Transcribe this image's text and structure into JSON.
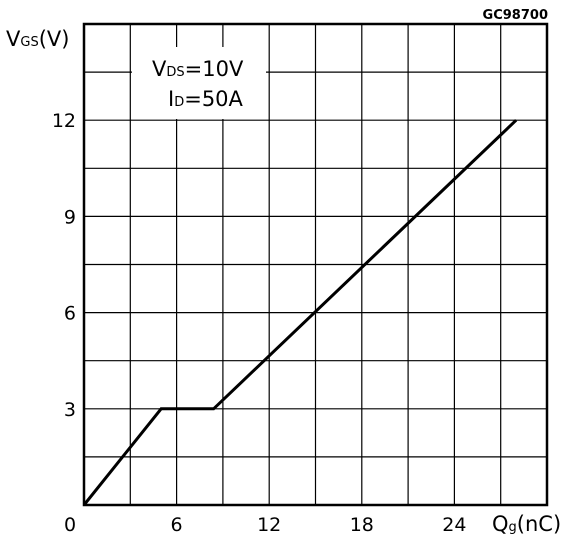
{
  "chart_data": {
    "type": "line",
    "figure_code": "GC98700",
    "y_label": {
      "main": "V",
      "sub": "GS",
      "unit": "(V)"
    },
    "x_label": {
      "main": "Q",
      "sub": "g",
      "unit": "(nC)"
    },
    "conditions": [
      {
        "main": "V",
        "sub": "DS",
        "value": "=10V"
      },
      {
        "main": "I",
        "sub": "D",
        "value": "=50A"
      }
    ],
    "xlim": [
      0,
      30
    ],
    "ylim": [
      0,
      15
    ],
    "x_grid_step": 3,
    "y_grid_step": 1.5,
    "x_ticks": [
      {
        "value": 0,
        "label": "0"
      },
      {
        "value": 6,
        "label": "6"
      },
      {
        "value": 12,
        "label": "12"
      },
      {
        "value": 18,
        "label": "18"
      },
      {
        "value": 24,
        "label": "24"
      }
    ],
    "y_ticks": [
      {
        "value": 3,
        "label": "3"
      },
      {
        "value": 6,
        "label": "6"
      },
      {
        "value": 9,
        "label": "9"
      },
      {
        "value": 12,
        "label": "12"
      }
    ],
    "series": [
      {
        "x": [
          0,
          5,
          8.4,
          28
        ],
        "y": [
          0,
          3,
          3,
          12
        ]
      }
    ],
    "grid": true,
    "line_color": "#000000"
  }
}
